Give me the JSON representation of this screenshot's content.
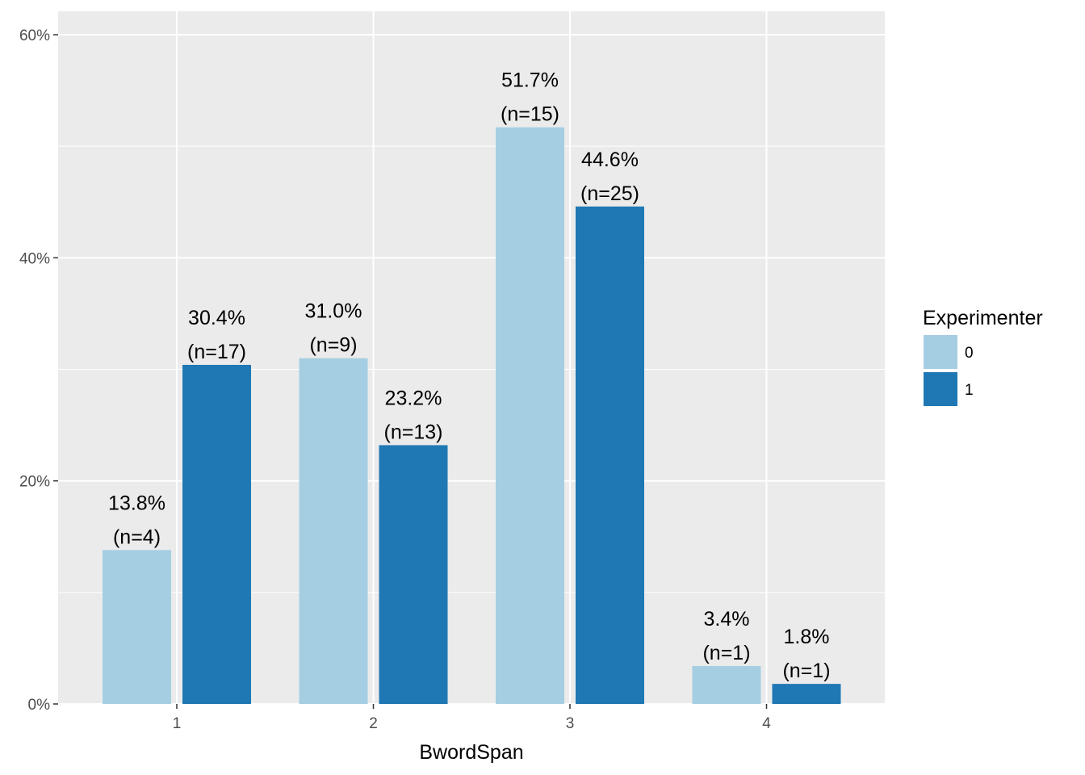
{
  "chart_data": {
    "type": "bar",
    "categories": [
      "1",
      "2",
      "3",
      "4"
    ],
    "xlabel": "BwordSpan",
    "ylabel": "",
    "ylim": [
      0,
      62
    ],
    "yticks": [
      0,
      20,
      40,
      60
    ],
    "ytick_labels": [
      "0%",
      "20%",
      "40%",
      "60%"
    ],
    "grid": true,
    "legend": {
      "title": "Experimenter",
      "position": "right"
    },
    "series": [
      {
        "name": "0",
        "color": "#a6cee3",
        "values": [
          13.8,
          31.0,
          51.7,
          3.4
        ],
        "labels": [
          "13.8%",
          "31.0%",
          "51.7%",
          "3.4%"
        ],
        "counts": [
          "(n=4)",
          "(n=9)",
          "(n=15)",
          "(n=1)"
        ]
      },
      {
        "name": "1",
        "color": "#1f78b4",
        "values": [
          30.4,
          23.2,
          44.6,
          1.8
        ],
        "labels": [
          "30.4%",
          "23.2%",
          "44.6%",
          "1.8%"
        ],
        "counts": [
          "(n=17)",
          "(n=13)",
          "(n=25)",
          "(n=1)"
        ]
      }
    ]
  }
}
